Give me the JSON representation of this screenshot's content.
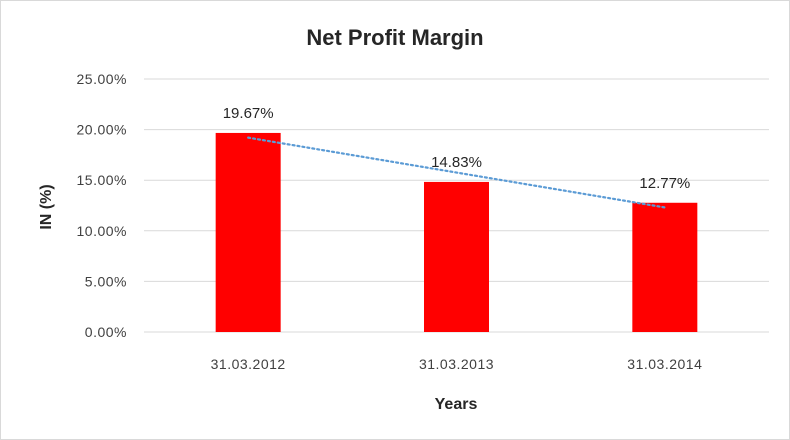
{
  "chart_data": {
    "type": "bar",
    "title": "Net Profit Margin",
    "xlabel": "Years",
    "ylabel": "IN (%)",
    "categories": [
      "31.03.2012",
      "31.03.2013",
      "31.03.2014"
    ],
    "values": [
      19.67,
      14.83,
      12.77
    ],
    "data_labels": [
      "19.67%",
      "14.83%",
      "12.77%"
    ],
    "ylim": [
      0,
      25
    ],
    "yticks": [
      0,
      5,
      10,
      15,
      20,
      25
    ],
    "ytick_labels": [
      "0.00%",
      "5.00%",
      "10.00%",
      "15.00%",
      "20.00%",
      "25.00%"
    ],
    "grid": true,
    "trendline": {
      "type": "linear",
      "style": "dotted"
    },
    "colors": {
      "bar": "#ff0000",
      "trendline": "#5b9bd5",
      "grid": "#d9d9d9"
    }
  }
}
